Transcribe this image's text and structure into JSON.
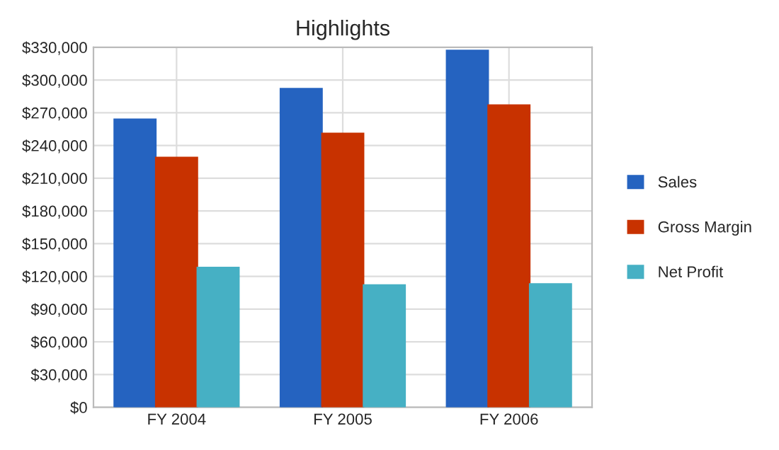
{
  "chart_data": {
    "type": "bar",
    "title": "Highlights",
    "categories": [
      "FY 2004",
      "FY 2005",
      "FY 2006"
    ],
    "series": [
      {
        "name": "Sales",
        "color": "#2563c0",
        "values": [
          264000,
          292000,
          327000
        ]
      },
      {
        "name": "Gross Margin",
        "color": "#c83200",
        "values": [
          229000,
          251000,
          277000
        ]
      },
      {
        "name": "Net Profit",
        "color": "#46b0c4",
        "values": [
          128000,
          112000,
          113000
        ]
      }
    ],
    "ylim": [
      0,
      330000
    ],
    "yticks": [
      {
        "value": 0,
        "label": "$0"
      },
      {
        "value": 30000,
        "label": "$30,000"
      },
      {
        "value": 60000,
        "label": "$60,000"
      },
      {
        "value": 90000,
        "label": "$90,000"
      },
      {
        "value": 120000,
        "label": "$120,000"
      },
      {
        "value": 150000,
        "label": "$150,000"
      },
      {
        "value": 180000,
        "label": "$180,000"
      },
      {
        "value": 210000,
        "label": "$210,000"
      },
      {
        "value": 240000,
        "label": "$240,000"
      },
      {
        "value": 270000,
        "label": "$270,000"
      },
      {
        "value": 300000,
        "label": "$300,000"
      },
      {
        "value": 330000,
        "label": "$330,000"
      }
    ],
    "grid": true,
    "legend": "right"
  }
}
